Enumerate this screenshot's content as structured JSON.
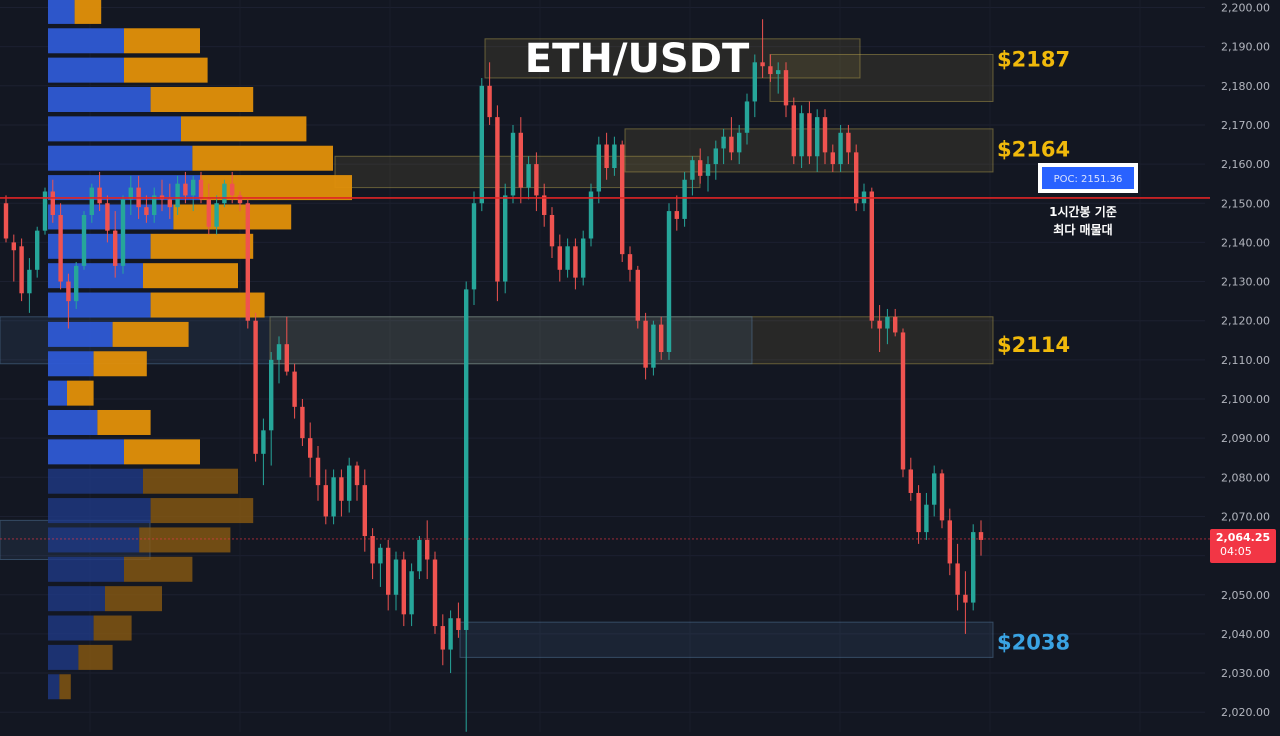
{
  "chart_data": {
    "type": "candlestick",
    "title": "ETH/USDT",
    "y_axis": {
      "ylim": [
        2017,
        2201
      ],
      "ticks": [
        2200,
        2190,
        2180,
        2170,
        2160,
        2150,
        2140,
        2130,
        2120,
        2110,
        2100,
        2090,
        2080,
        2070,
        2060,
        2050,
        2040,
        2030,
        2020
      ],
      "tick_labels": [
        "2,200.00",
        "2,190.00",
        "2,180.00",
        "2,170.00",
        "2,160.00",
        "2,150.00",
        "2,140.00",
        "2,130.00",
        "2,120.00",
        "2,110.00",
        "2,100.00",
        "2,090.00",
        "2,080.00",
        "2,070.00",
        "2,060.00",
        "2,050.00",
        "2,040.00",
        "2,030.00",
        "2,020.00"
      ]
    },
    "current_price": {
      "value": 2064.25,
      "label": "2,064.25",
      "countdown": "04:05"
    },
    "poc": {
      "value": 2151.36,
      "label": "POC: 2151.36",
      "note_line1": "1시간봉 기준",
      "note_line2": "최다 매물대"
    },
    "levels": [
      {
        "label": "$2187",
        "price": 2187,
        "color": "#f0b90b"
      },
      {
        "label": "$2164",
        "price": 2164,
        "color": "#f0b90b"
      },
      {
        "label": "$2114",
        "price": 2114,
        "color": "#f0b90b"
      },
      {
        "label": "$2038",
        "price": 2038,
        "color": "#3aa3e3"
      }
    ],
    "zones": [
      {
        "kind": "resistance",
        "top": 2192,
        "bottom": 2182
      },
      {
        "kind": "resistance",
        "top": 2188,
        "bottom": 2176
      },
      {
        "kind": "resistance",
        "top": 2169,
        "bottom": 2158
      },
      {
        "kind": "resistance",
        "top": 2162,
        "bottom": 2154
      },
      {
        "kind": "resistance",
        "top": 2121,
        "bottom": 2109
      },
      {
        "kind": "support",
        "top": 2121,
        "bottom": 2109
      },
      {
        "kind": "support",
        "top": 2069,
        "bottom": 2059
      },
      {
        "kind": "support",
        "top": 2043,
        "bottom": 2034
      }
    ],
    "volume_profile": [
      {
        "price": 2199,
        "buy": 3.5,
        "sell": 3.5,
        "in_value_area": true
      },
      {
        "price": 2191.5,
        "buy": 10,
        "sell": 10,
        "in_value_area": true
      },
      {
        "price": 2184,
        "buy": 10,
        "sell": 11,
        "in_value_area": true
      },
      {
        "price": 2176.5,
        "buy": 13.5,
        "sell": 13.5,
        "in_value_area": true
      },
      {
        "price": 2169,
        "buy": 17.5,
        "sell": 16.5,
        "in_value_area": true
      },
      {
        "price": 2161.5,
        "buy": 19,
        "sell": 18.5,
        "in_value_area": true
      },
      {
        "price": 2154,
        "buy": 20,
        "sell": 20,
        "in_value_area": true
      },
      {
        "price": 2146.5,
        "buy": 16.5,
        "sell": 15.5,
        "in_value_area": true
      },
      {
        "price": 2139,
        "buy": 13.5,
        "sell": 13.5,
        "in_value_area": true
      },
      {
        "price": 2131.5,
        "buy": 12.5,
        "sell": 12.5,
        "in_value_area": true
      },
      {
        "price": 2124,
        "buy": 13.5,
        "sell": 15,
        "in_value_area": true
      },
      {
        "price": 2116.5,
        "buy": 8.5,
        "sell": 10,
        "in_value_area": true
      },
      {
        "price": 2109,
        "buy": 6,
        "sell": 7,
        "in_value_area": true
      },
      {
        "price": 2101.5,
        "buy": 2.5,
        "sell": 3.5,
        "in_value_area": true
      },
      {
        "price": 2094,
        "buy": 6.5,
        "sell": 7,
        "in_value_area": true
      },
      {
        "price": 2086.5,
        "buy": 10,
        "sell": 10,
        "in_value_area": true
      },
      {
        "price": 2079,
        "buy": 12.5,
        "sell": 12.5,
        "in_value_area": false
      },
      {
        "price": 2071.5,
        "buy": 13.5,
        "sell": 13.5,
        "in_value_area": false
      },
      {
        "price": 2064,
        "buy": 12,
        "sell": 12,
        "in_value_area": false
      },
      {
        "price": 2056.5,
        "buy": 10,
        "sell": 9,
        "in_value_area": false
      },
      {
        "price": 2049,
        "buy": 7.5,
        "sell": 7.5,
        "in_value_area": false
      },
      {
        "price": 2041.5,
        "buy": 6,
        "sell": 5,
        "in_value_area": false
      },
      {
        "price": 2034,
        "buy": 4,
        "sell": 4.5,
        "in_value_area": false
      },
      {
        "price": 2026.5,
        "buy": 1.5,
        "sell": 1.5,
        "in_value_area": false
      }
    ],
    "candles": [
      [
        2150,
        2152,
        2140,
        2141
      ],
      [
        2140,
        2142,
        2130,
        2138
      ],
      [
        2139,
        2141,
        2125,
        2127
      ],
      [
        2127,
        2136,
        2122,
        2133
      ],
      [
        2133,
        2144,
        2131,
        2143
      ],
      [
        2143,
        2154,
        2142,
        2153
      ],
      [
        2153,
        2156,
        2145,
        2147
      ],
      [
        2147,
        2150,
        2128,
        2130
      ],
      [
        2130,
        2132,
        2118,
        2125
      ],
      [
        2125,
        2135,
        2123,
        2134
      ],
      [
        2134,
        2148,
        2133,
        2147
      ],
      [
        2147,
        2155,
        2145,
        2154
      ],
      [
        2154,
        2158,
        2148,
        2150
      ],
      [
        2150,
        2152,
        2140,
        2143
      ],
      [
        2143,
        2148,
        2131,
        2134
      ],
      [
        2134,
        2152,
        2132,
        2151
      ],
      [
        2151,
        2157,
        2147,
        2154
      ],
      [
        2154,
        2157,
        2146,
        2149
      ],
      [
        2149,
        2152,
        2145,
        2147
      ],
      [
        2147,
        2154,
        2145,
        2152
      ],
      [
        2152,
        2156,
        2148,
        2151
      ],
      [
        2151,
        2155,
        2146,
        2149
      ],
      [
        2149,
        2157,
        2147,
        2155
      ],
      [
        2155,
        2158,
        2150,
        2152
      ],
      [
        2152,
        2157,
        2148,
        2156
      ],
      [
        2156,
        2158,
        2150,
        2151
      ],
      [
        2151,
        2155,
        2142,
        2144
      ],
      [
        2144,
        2152,
        2142,
        2150
      ],
      [
        2150,
        2156,
        2149,
        2155
      ],
      [
        2155,
        2158,
        2150,
        2152
      ],
      [
        2152,
        2153,
        2148,
        2150
      ],
      [
        2150,
        2151,
        2118,
        2120
      ],
      [
        2120,
        2122,
        2084,
        2086
      ],
      [
        2086,
        2095,
        2078,
        2092
      ],
      [
        2092,
        2112,
        2083,
        2110
      ],
      [
        2110,
        2116,
        2104,
        2114
      ],
      [
        2114,
        2121,
        2106,
        2107
      ],
      [
        2107,
        2109,
        2095,
        2098
      ],
      [
        2098,
        2100,
        2088,
        2090
      ],
      [
        2090,
        2094,
        2080,
        2085
      ],
      [
        2085,
        2088,
        2074,
        2078
      ],
      [
        2078,
        2082,
        2068,
        2070
      ],
      [
        2070,
        2082,
        2068,
        2080
      ],
      [
        2080,
        2082,
        2070,
        2074
      ],
      [
        2074,
        2085,
        2071,
        2083
      ],
      [
        2083,
        2084,
        2074,
        2078
      ],
      [
        2078,
        2082,
        2061,
        2065
      ],
      [
        2065,
        2067,
        2054,
        2058
      ],
      [
        2058,
        2063,
        2052,
        2062
      ],
      [
        2062,
        2064,
        2046,
        2050
      ],
      [
        2050,
        2061,
        2046,
        2059
      ],
      [
        2059,
        2061,
        2042,
        2045
      ],
      [
        2045,
        2058,
        2042,
        2056
      ],
      [
        2056,
        2065,
        2054,
        2064
      ],
      [
        2064,
        2069,
        2054,
        2059
      ],
      [
        2059,
        2061,
        2040,
        2042
      ],
      [
        2042,
        2045,
        2032,
        2036
      ],
      [
        2036,
        2046,
        2030,
        2044
      ],
      [
        2044,
        2048,
        2039,
        2041
      ],
      [
        2041,
        2130,
        2015,
        2128
      ],
      [
        2128,
        2153,
        2124,
        2150
      ],
      [
        2150,
        2182,
        2148,
        2180
      ],
      [
        2180,
        2186,
        2170,
        2172
      ],
      [
        2172,
        2175,
        2125,
        2130
      ],
      [
        2130,
        2155,
        2127,
        2152
      ],
      [
        2152,
        2170,
        2150,
        2168
      ],
      [
        2168,
        2172,
        2150,
        2154
      ],
      [
        2154,
        2162,
        2151,
        2160
      ],
      [
        2160,
        2163,
        2148,
        2152
      ],
      [
        2152,
        2155,
        2144,
        2147
      ],
      [
        2147,
        2149,
        2136,
        2139
      ],
      [
        2139,
        2142,
        2130,
        2133
      ],
      [
        2133,
        2141,
        2131,
        2139
      ],
      [
        2139,
        2141,
        2128,
        2131
      ],
      [
        2131,
        2143,
        2129,
        2141
      ],
      [
        2141,
        2155,
        2139,
        2153
      ],
      [
        2153,
        2167,
        2150,
        2165
      ],
      [
        2165,
        2168,
        2156,
        2159
      ],
      [
        2159,
        2167,
        2157,
        2165
      ],
      [
        2165,
        2166,
        2135,
        2137
      ],
      [
        2137,
        2139,
        2130,
        2133
      ],
      [
        2133,
        2134,
        2118,
        2120
      ],
      [
        2120,
        2122,
        2105,
        2108
      ],
      [
        2108,
        2120,
        2106,
        2119
      ],
      [
        2119,
        2121,
        2110,
        2112
      ],
      [
        2112,
        2150,
        2110,
        2148
      ],
      [
        2148,
        2152,
        2143,
        2146
      ],
      [
        2146,
        2158,
        2144,
        2156
      ],
      [
        2156,
        2162,
        2152,
        2161
      ],
      [
        2161,
        2164,
        2155,
        2157
      ],
      [
        2157,
        2162,
        2153,
        2160
      ],
      [
        2160,
        2166,
        2156,
        2164
      ],
      [
        2164,
        2169,
        2160,
        2167
      ],
      [
        2167,
        2172,
        2161,
        2163
      ],
      [
        2163,
        2170,
        2160,
        2168
      ],
      [
        2168,
        2178,
        2165,
        2176
      ],
      [
        2176,
        2188,
        2172,
        2186
      ],
      [
        2186,
        2197,
        2182,
        2185
      ],
      [
        2185,
        2188,
        2181,
        2183
      ],
      [
        2183,
        2186,
        2178,
        2184
      ],
      [
        2184,
        2186,
        2172,
        2175
      ],
      [
        2175,
        2177,
        2160,
        2162
      ],
      [
        2162,
        2175,
        2159,
        2173
      ],
      [
        2173,
        2176,
        2160,
        2162
      ],
      [
        2162,
        2174,
        2158,
        2172
      ],
      [
        2172,
        2174,
        2160,
        2163
      ],
      [
        2163,
        2165,
        2158,
        2160
      ],
      [
        2160,
        2170,
        2158,
        2168
      ],
      [
        2168,
        2170,
        2160,
        2163
      ],
      [
        2163,
        2165,
        2148,
        2150
      ],
      [
        2150,
        2155,
        2148,
        2153
      ],
      [
        2153,
        2154,
        2118,
        2120
      ],
      [
        2120,
        2124,
        2112,
        2118
      ],
      [
        2118,
        2123,
        2114,
        2121
      ],
      [
        2121,
        2123,
        2116,
        2117
      ],
      [
        2117,
        2118,
        2080,
        2082
      ],
      [
        2082,
        2085,
        2074,
        2076
      ],
      [
        2076,
        2078,
        2063,
        2066
      ],
      [
        2066,
        2076,
        2064,
        2073
      ],
      [
        2073,
        2083,
        2070,
        2081
      ],
      [
        2081,
        2082,
        2067,
        2069
      ],
      [
        2069,
        2072,
        2055,
        2058
      ],
      [
        2058,
        2063,
        2046,
        2050
      ],
      [
        2050,
        2056,
        2040,
        2048
      ],
      [
        2048,
        2068,
        2046,
        2066
      ],
      [
        2066,
        2069,
        2060,
        2064
      ]
    ]
  }
}
